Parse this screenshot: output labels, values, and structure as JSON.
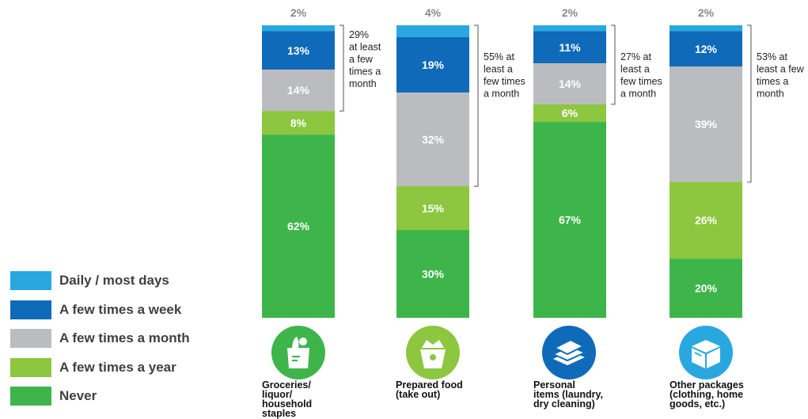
{
  "chart_data": {
    "type": "bar",
    "stacked": true,
    "normalized": true,
    "categories": [
      "Groceries/\nliquor/\nhousehold\nstaples",
      "Prepared food\n(take out)",
      "Personal\nitems (laundry,\ndry cleaning)",
      "Other packages\n(clothing, home\ngoods, etc.)"
    ],
    "series": [
      {
        "name": "Daily / most days",
        "color": "#29a8e0",
        "values": [
          2,
          4,
          2,
          2
        ]
      },
      {
        "name": "A few times a week",
        "color": "#0f6bb9",
        "values": [
          13,
          19,
          11,
          12
        ]
      },
      {
        "name": "A few times a month",
        "color": "#bbbcbf",
        "values": [
          14,
          32,
          14,
          39
        ]
      },
      {
        "name": "A few times a year",
        "color": "#8dc63f",
        "values": [
          8,
          15,
          6,
          26
        ]
      },
      {
        "name": "Never",
        "color": "#3db54a",
        "values": [
          62,
          30,
          67,
          20
        ]
      }
    ],
    "value_labels": [
      [
        "2%",
        "13%",
        "14%",
        "8%",
        "62%"
      ],
      [
        "4%",
        "19%",
        "32%",
        "15%",
        "30%"
      ],
      [
        "2%",
        "11%",
        "14%",
        "6%",
        "67%"
      ],
      [
        "2%",
        "12%",
        "39%",
        "26%",
        "20%"
      ]
    ],
    "annotations": [
      "29%\nat least\na few\ntimes a\nmonth",
      "55% at\nleast a\nfew times\na month",
      "27% at\nleast a\nfew times\na month",
      "53% at\nleast a few\ntimes a\nmonth"
    ],
    "legend_position": "bottom-left",
    "grid": false
  },
  "icons": [
    "grocery-bag-icon",
    "takeout-box-icon",
    "folded-laundry-icon",
    "package-box-icon"
  ]
}
